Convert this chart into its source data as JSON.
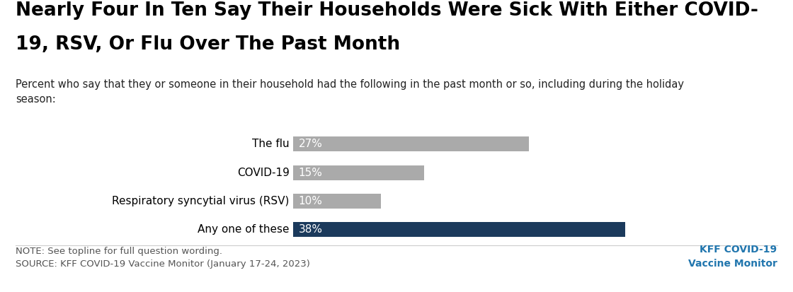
{
  "title_line1": "Nearly Four In Ten Say Their Households Were Sick With Either COVID-",
  "title_line2": "19, RSV, Or Flu Over The Past Month",
  "subtitle": "Percent who say that they or someone in their household had the following in the past month or so, including during the holiday\nseason:",
  "categories": [
    "The flu",
    "COVID-19",
    "Respiratory syncytial virus (RSV)",
    "Any one of these"
  ],
  "values": [
    27,
    15,
    10,
    38
  ],
  "bar_colors": [
    "#aaaaaa",
    "#aaaaaa",
    "#aaaaaa",
    "#1b3a5c"
  ],
  "label_texts": [
    "27%",
    "15%",
    "10%",
    "38%"
  ],
  "note": "NOTE: See topline for full question wording.\nSOURCE: KFF COVID-19 Vaccine Monitor (January 17-24, 2023)",
  "kff_label_line1": "KFF COVID-19",
  "kff_label_line2": "Vaccine Monitor",
  "kff_color": "#2176ae",
  "xlim": [
    0,
    50
  ],
  "background_color": "#ffffff",
  "title_fontsize": 19,
  "subtitle_fontsize": 10.5,
  "category_fontsize": 11,
  "bar_label_fontsize": 11,
  "note_fontsize": 9.5,
  "bar_height": 0.52
}
